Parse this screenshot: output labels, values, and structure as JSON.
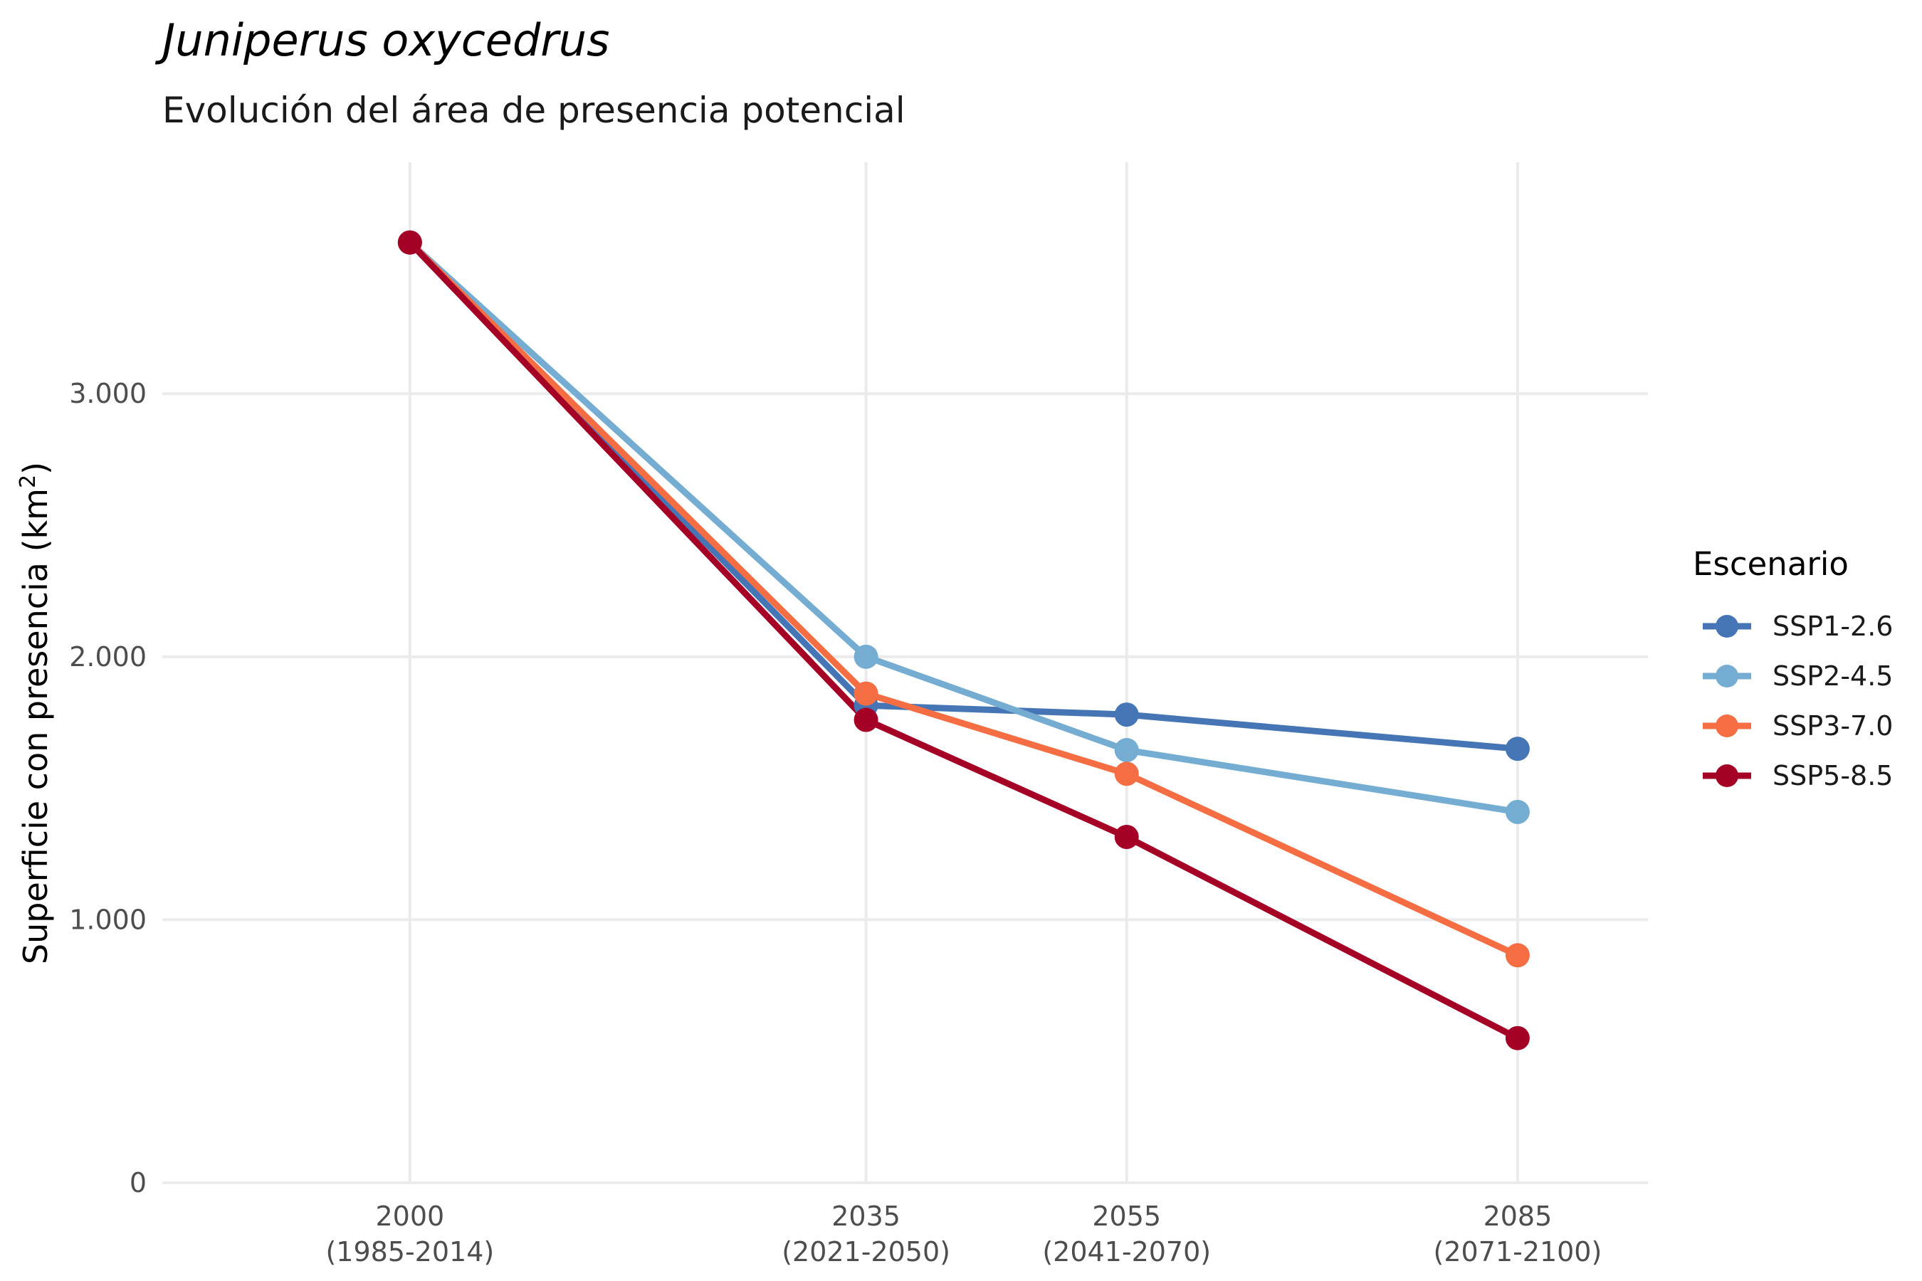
{
  "chart_data": {
    "type": "line",
    "title": "Juniperus oxycedrus",
    "subtitle": "Evolución del área de presencia potencial",
    "ylabel": "Superficie con presencia (km²)",
    "xlabel": "",
    "x": [
      2000,
      2035,
      2055,
      2085
    ],
    "x_tick_labels": [
      [
        "2000",
        "(1985-2014)"
      ],
      [
        "2035",
        "(2021-2050)"
      ],
      [
        "2055",
        "(2041-2070)"
      ],
      [
        "2085",
        "(2071-2100)"
      ]
    ],
    "xlim": [
      1981,
      2095
    ],
    "ylim": [
      0,
      3880
    ],
    "y_ticks": [
      0,
      1000,
      2000,
      3000
    ],
    "y_tick_labels": [
      "0",
      "1.000",
      "2.000",
      "3.000"
    ],
    "grid": true,
    "legend": {
      "title": "Escenario",
      "position": "right"
    },
    "series": [
      {
        "name": "SSP1-2.6",
        "color": "#4575b4",
        "values": [
          3575,
          1815,
          1780,
          1650
        ]
      },
      {
        "name": "SSP2-4.5",
        "color": "#74add1",
        "values": [
          3575,
          2000,
          1645,
          1410
        ]
      },
      {
        "name": "SSP3-7.0",
        "color": "#f46d43",
        "values": [
          3575,
          1860,
          1555,
          865
        ]
      },
      {
        "name": "SSP5-8.5",
        "color": "#a50026",
        "values": [
          3575,
          1760,
          1315,
          550
        ]
      }
    ]
  }
}
